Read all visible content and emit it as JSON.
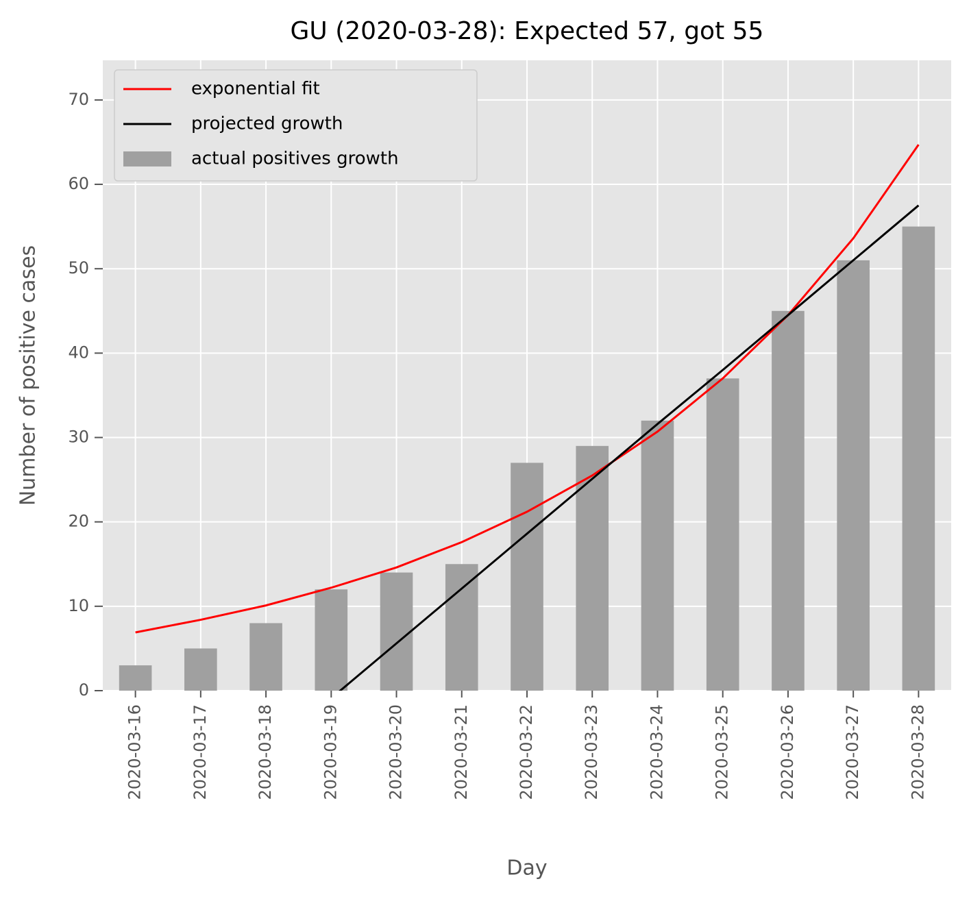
{
  "chart_data": {
    "type": "bar_line",
    "title": "GU (2020-03-28): Expected 57, got 55",
    "xlabel": "Day",
    "ylabel": "Number of positive cases",
    "categories": [
      "2020-03-16",
      "2020-03-17",
      "2020-03-18",
      "2020-03-19",
      "2020-03-20",
      "2020-03-21",
      "2020-03-22",
      "2020-03-23",
      "2020-03-24",
      "2020-03-25",
      "2020-03-26",
      "2020-03-27",
      "2020-03-28"
    ],
    "series": [
      {
        "name": "exponential fit",
        "type": "line",
        "color": "#ff0000",
        "values": [
          6.9,
          8.4,
          10.1,
          12.2,
          14.6,
          17.6,
          21.2,
          25.5,
          30.7,
          37.0,
          44.5,
          53.6,
          64.7
        ]
      },
      {
        "name": "projected growth",
        "type": "line",
        "color": "#000000",
        "values": [
          null,
          null,
          null,
          -0.9,
          5.6,
          12.1,
          18.6,
          25.1,
          31.6,
          38.0,
          44.5,
          51.0,
          57.5
        ]
      },
      {
        "name": "actual positives growth",
        "type": "bar",
        "color": "#a0a0a0",
        "values": [
          3,
          5,
          8,
          12,
          14,
          15,
          27,
          29,
          32,
          37,
          45,
          51,
          55
        ]
      }
    ],
    "ylim": [
      0,
      74.7
    ],
    "yticks": [
      0,
      10,
      20,
      30,
      40,
      50,
      60,
      70
    ],
    "grid": true,
    "legend": "upper left"
  }
}
